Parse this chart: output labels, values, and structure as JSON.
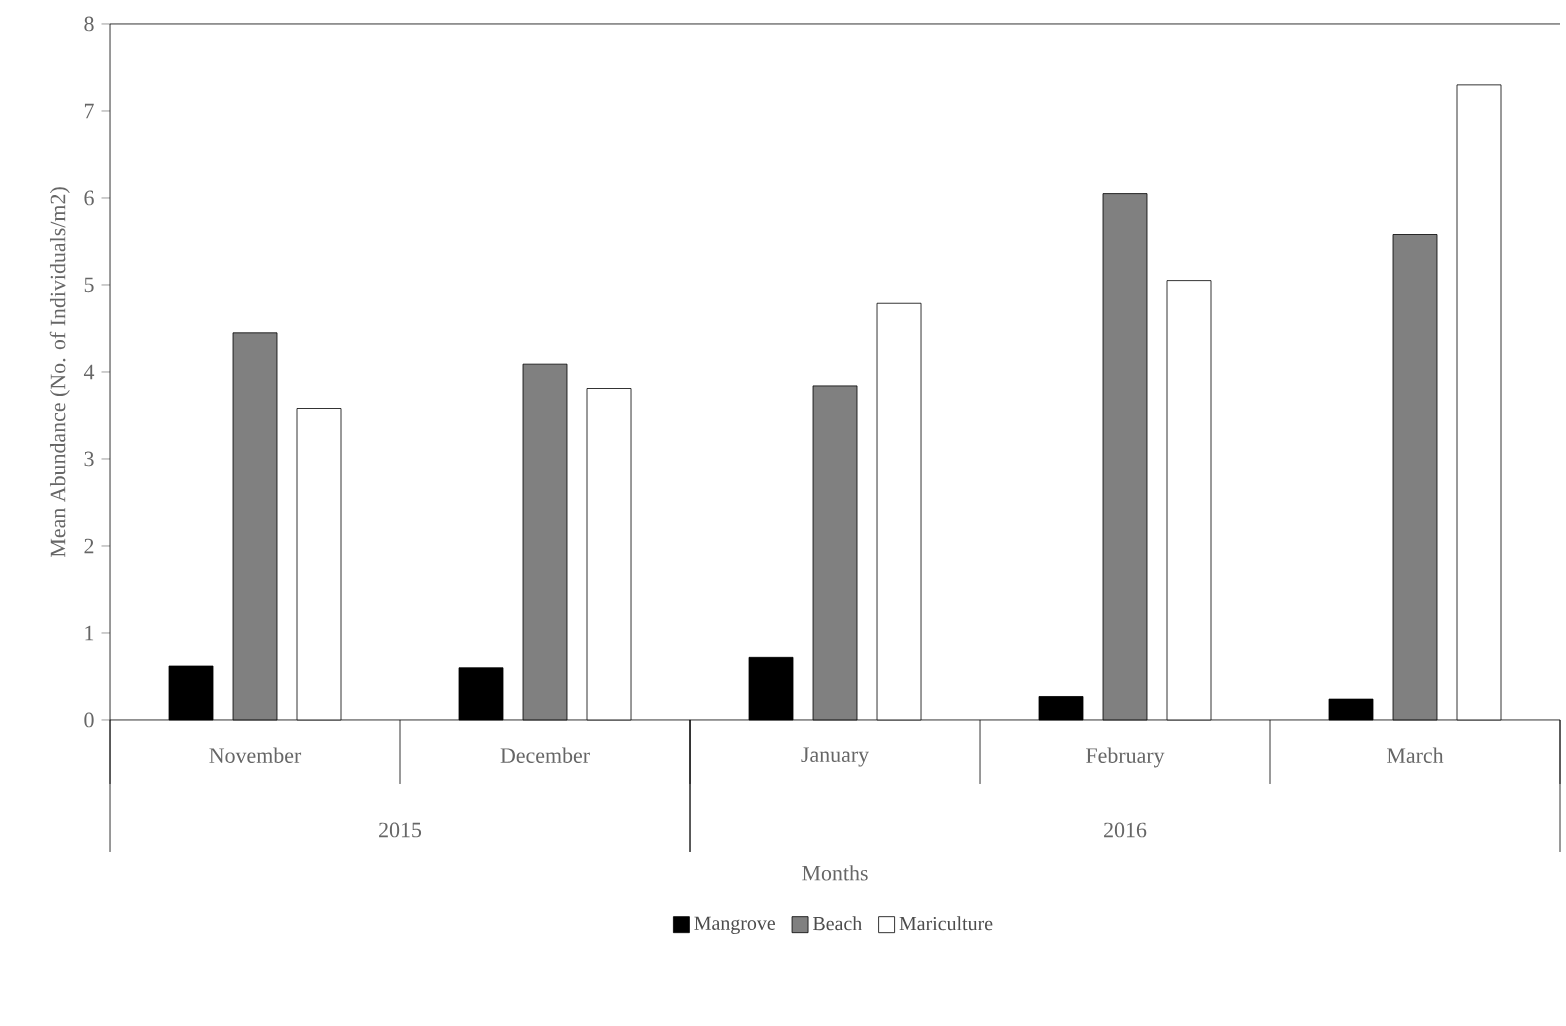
{
  "chart_data": {
    "type": "bar",
    "xlabel": "Months",
    "ylabel": "Mean Abundance (No. of Individuals/m2)",
    "categories": [
      "November",
      "December",
      "January",
      "February",
      "March"
    ],
    "series": [
      {
        "name": "Mangrove",
        "color": "#000000",
        "values": [
          0.62,
          0.6,
          0.72,
          0.27,
          0.24
        ]
      },
      {
        "name": "Beach",
        "color": "#808080",
        "values": [
          4.45,
          4.09,
          3.84,
          6.05,
          5.58
        ]
      },
      {
        "name": "Mariculture",
        "color": "#ffffff",
        "values": [
          3.58,
          3.81,
          4.79,
          5.05,
          7.3
        ]
      }
    ],
    "annotations": [
      "2015",
      "2016"
    ],
    "ylim": [
      0,
      8
    ],
    "yticks": [
      0,
      1,
      2,
      3,
      4,
      5,
      6,
      7,
      8
    ],
    "grid": false,
    "legend": "bottom"
  }
}
